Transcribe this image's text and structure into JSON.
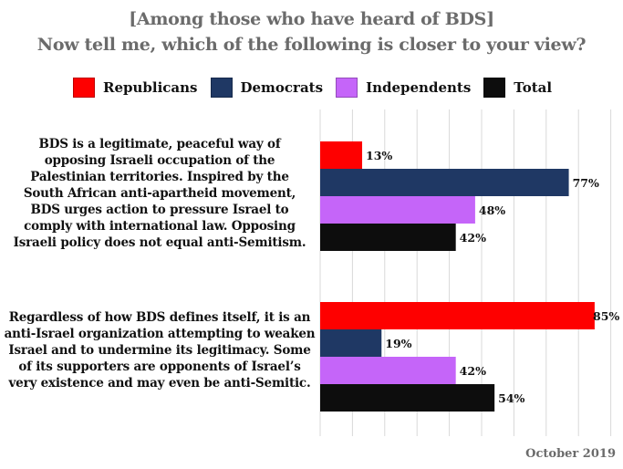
{
  "title": {
    "line1": "[Among those who have heard of BDS]",
    "line2": "Now tell me, which of the following is closer to your view?"
  },
  "footer": {
    "date": "October 2019"
  },
  "chart_data": {
    "type": "bar",
    "orientation": "horizontal",
    "title": "[Among those who have heard of BDS] Now tell me, which of the following is closer to your view?",
    "xlabel": "",
    "ylabel": "",
    "xlim": [
      0,
      90
    ],
    "grid": true,
    "legend_position": "top",
    "categories": [
      "BDS is a legitimate, peaceful way of opposing Israeli occupation of the Palestinian territories. Inspired by the South African anti-apartheid movement, BDS urges action to pressure Israel to comply with international law. Opposing Israeli policy does not equal anti-Semitism.",
      "Regardless of how BDS defines itself, it is an anti-Israel organization attempting to weaken Israel and to undermine its legitimacy. Some of its supporters are opponents of Israel’s very existence and may even be anti-Semitic."
    ],
    "series": [
      {
        "name": "Republicans",
        "color": "#fe0000",
        "values": [
          13,
          85
        ],
        "labels": [
          "13%",
          "85%"
        ]
      },
      {
        "name": "Democrats",
        "color": "#1f3864",
        "values": [
          77,
          19
        ],
        "labels": [
          "77%",
          "19%"
        ]
      },
      {
        "name": "Independents",
        "color": "#c565f9",
        "values": [
          48,
          42
        ],
        "labels": [
          "48%",
          "42%"
        ]
      },
      {
        "name": "Total",
        "color": "#0d0d0d",
        "values": [
          42,
          54
        ],
        "labels": [
          "42%",
          "54%"
        ]
      }
    ],
    "gridline_values": [
      0,
      10,
      20,
      30,
      40,
      50,
      60,
      70,
      80,
      90
    ]
  }
}
